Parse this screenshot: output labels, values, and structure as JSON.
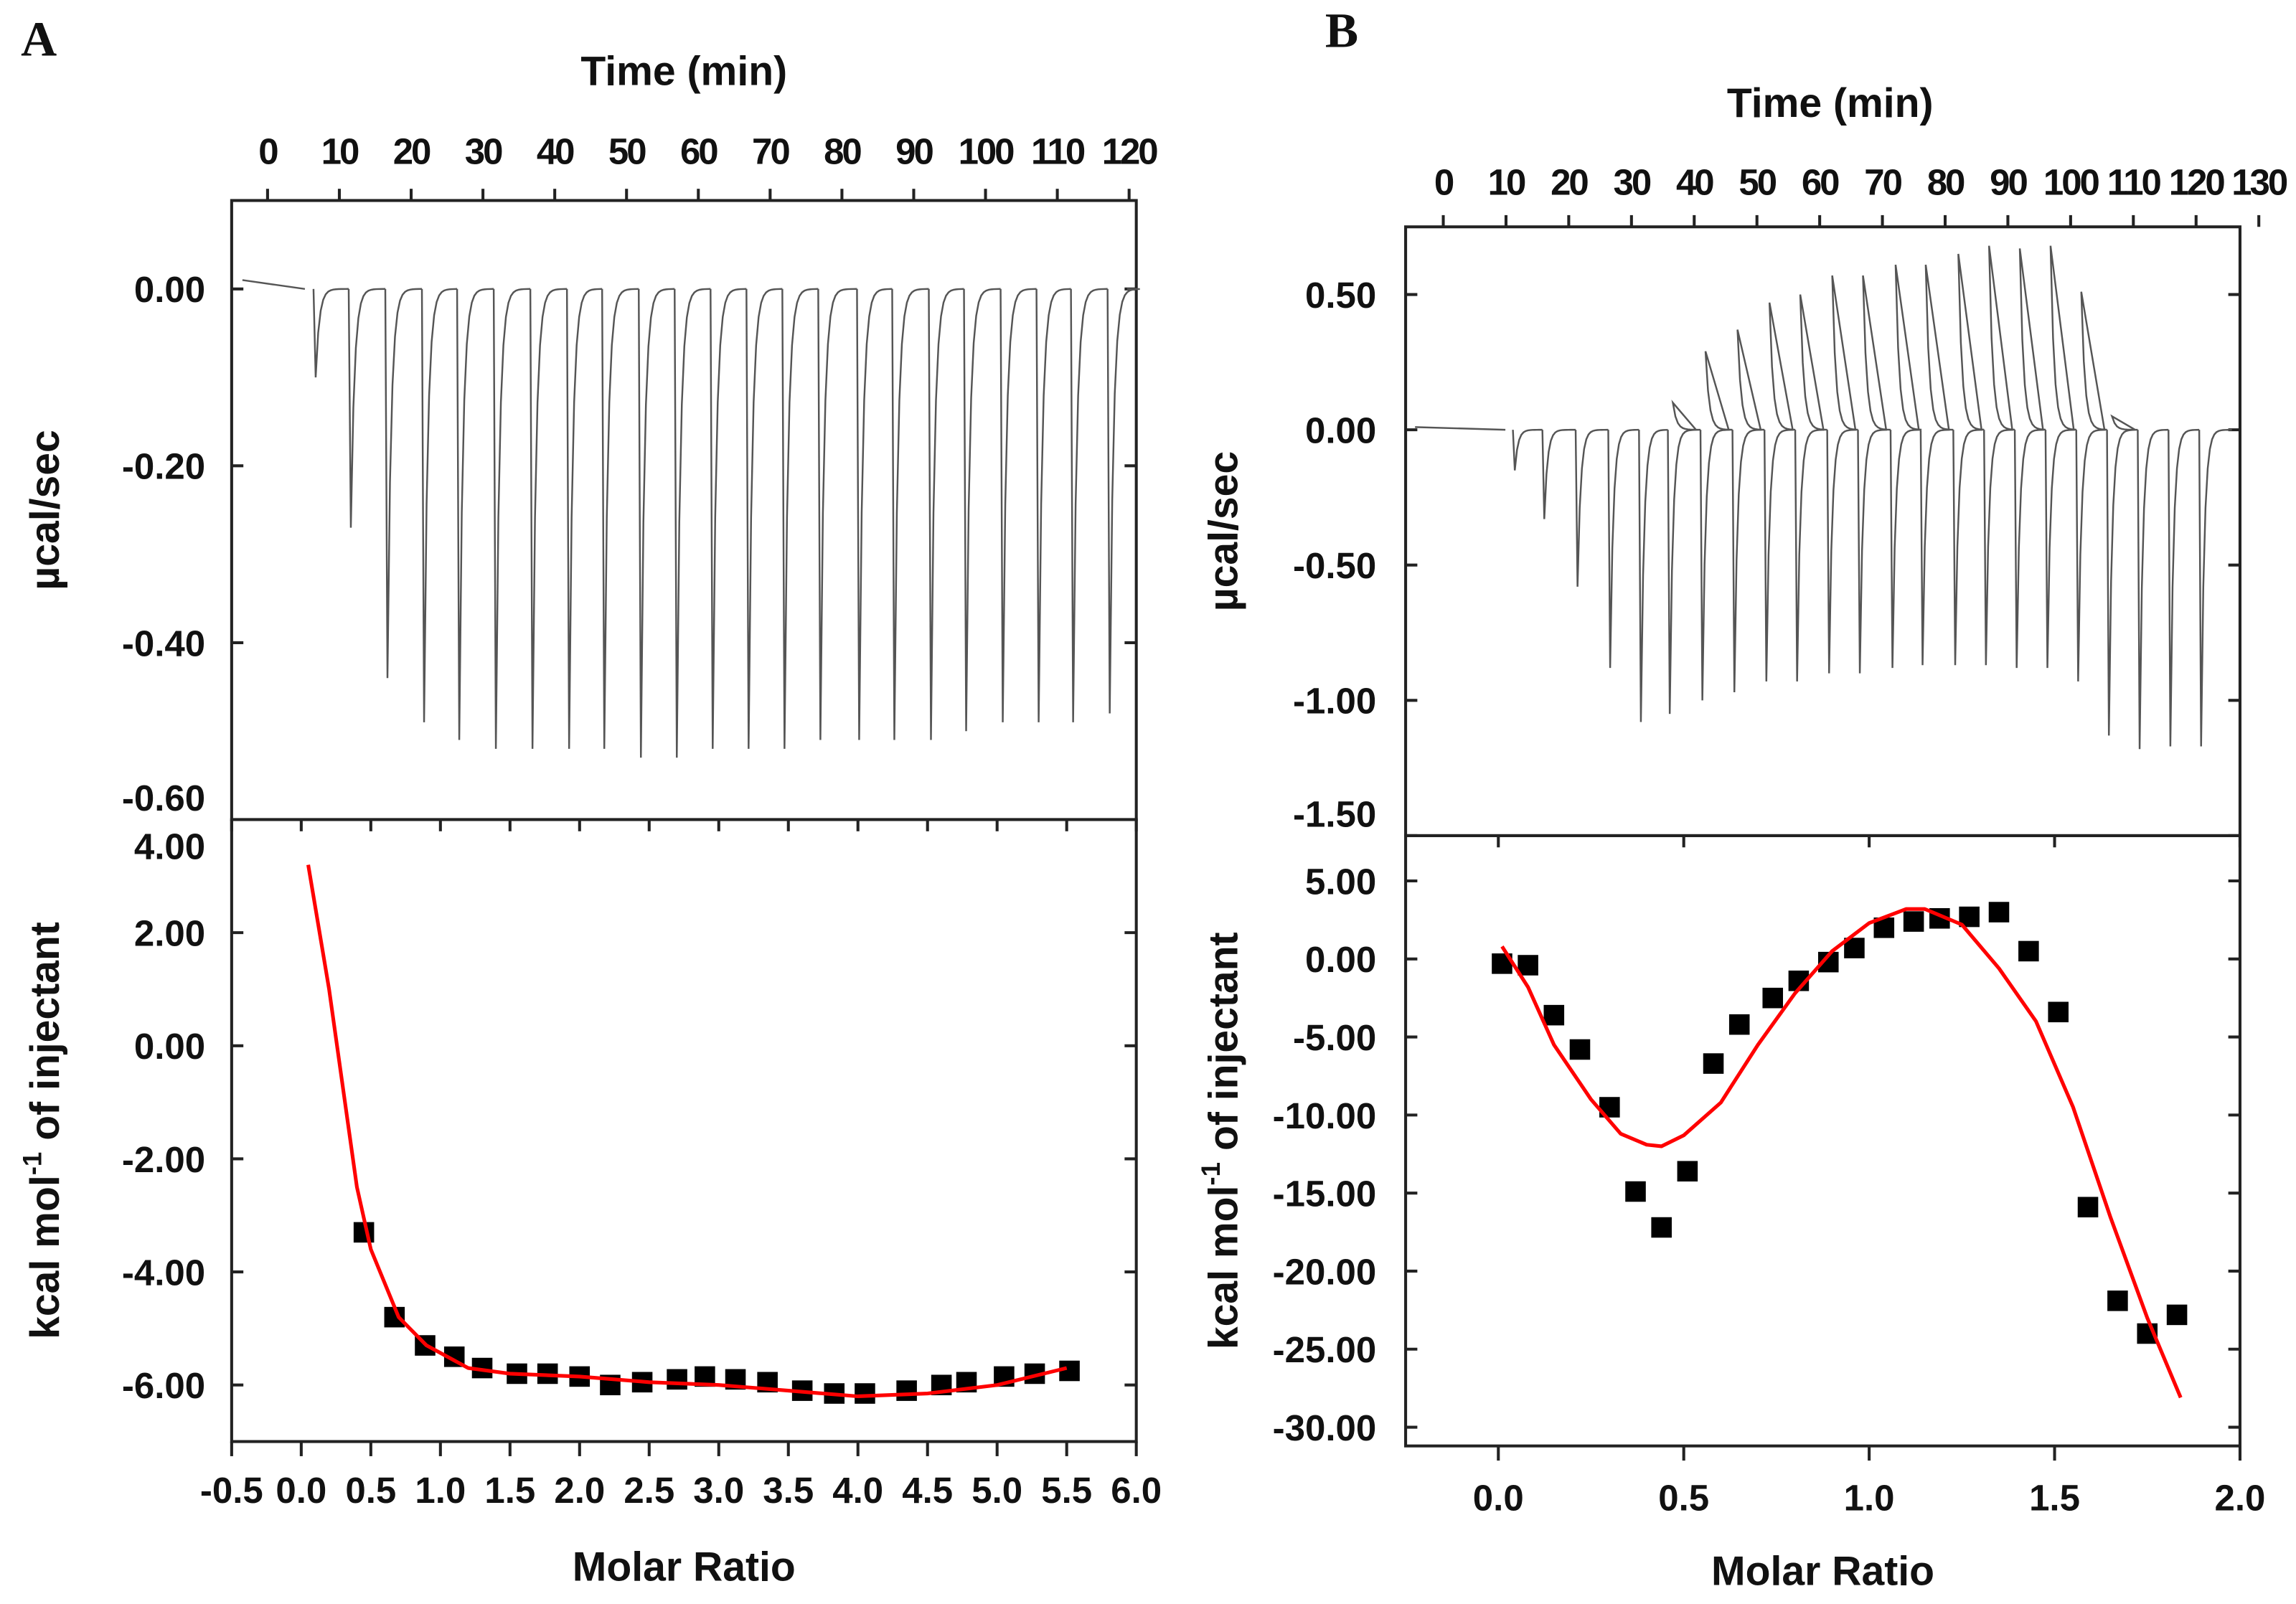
{
  "chart_data": [
    {
      "panel_label": "A",
      "type": "line",
      "thermogram": {
        "title": "Time (min)",
        "ylabel": "µcal/sec",
        "xlim": [
          -5,
          121
        ],
        "ylim": [
          -0.6,
          0.1
        ],
        "xticks": [
          "0",
          "10",
          "20",
          "30",
          "40",
          "50",
          "60",
          "70",
          "80",
          "90",
          "100",
          "110",
          "120"
        ],
        "yticks": [
          "0.00",
          "-0.20",
          "-0.40",
          "-0.60"
        ],
        "injection_times": [
          6.7,
          11.6,
          16.7,
          21.8,
          26.7,
          31.8,
          36.9,
          42,
          46.9,
          52,
          57,
          62,
          67,
          72,
          77,
          82.4,
          87.3,
          92.4,
          97.3,
          102.4,
          107.4,
          112.2,
          117.3
        ],
        "peak_down": [
          -0.1,
          -0.27,
          -0.44,
          -0.49,
          -0.51,
          -0.52,
          -0.52,
          -0.52,
          -0.52,
          -0.53,
          -0.53,
          -0.52,
          -0.52,
          -0.52,
          -0.51,
          -0.51,
          -0.51,
          -0.51,
          -0.5,
          -0.49,
          -0.49,
          -0.49,
          -0.48
        ],
        "peak_up": []
      },
      "binding": {
        "type": "scatter",
        "xlabel": "Molar Ratio",
        "ylabel_parts": [
          "kcal mol",
          "-1",
          " of injectant"
        ],
        "xlim": [
          -0.5,
          6.0
        ],
        "ylim": [
          -7.0,
          4.0
        ],
        "xticks": [
          "-0.5",
          "0.0",
          "0.5",
          "1.0",
          "1.5",
          "2.0",
          "2.5",
          "3.0",
          "3.5",
          "4.0",
          "4.5",
          "5.0",
          "5.5",
          "6.0"
        ],
        "yticks": [
          "4.00",
          "2.00",
          "0.00",
          "-2.00",
          "-4.00",
          "-6.00"
        ],
        "points_x": [
          0.45,
          0.67,
          0.89,
          1.1,
          1.3,
          1.55,
          1.77,
          2.0,
          2.22,
          2.45,
          2.7,
          2.9,
          3.12,
          3.35,
          3.6,
          3.83,
          4.05,
          4.35,
          4.6,
          4.78,
          5.05,
          5.27,
          5.52
        ],
        "points_y": [
          -3.3,
          -4.8,
          -5.3,
          -5.5,
          -5.7,
          -5.8,
          -5.8,
          -5.85,
          -6.0,
          -5.95,
          -5.9,
          -5.85,
          -5.9,
          -5.95,
          -6.1,
          -6.15,
          -6.15,
          -6.1,
          -6.0,
          -5.95,
          -5.85,
          -5.8,
          -5.75
        ],
        "fit_x": [
          0.05,
          0.2,
          0.4,
          0.5,
          0.7,
          0.9,
          1.2,
          1.5,
          2.0,
          2.5,
          3.0,
          3.5,
          4.0,
          4.5,
          5.0,
          5.5
        ],
        "fit_y": [
          3.2,
          1.0,
          -2.5,
          -3.6,
          -4.8,
          -5.3,
          -5.7,
          -5.8,
          -5.85,
          -5.95,
          -6.0,
          -6.1,
          -6.2,
          -6.15,
          -6.0,
          -5.7
        ],
        "fit_color": "#ff0000"
      }
    },
    {
      "panel_label": "B",
      "type": "line",
      "thermogram": {
        "title": "Time (min)",
        "ylabel": "µcal/sec",
        "xlim": [
          -6,
          127
        ],
        "ylim": [
          -1.5,
          0.75
        ],
        "xticks": [
          "0",
          "10",
          "20",
          "30",
          "40",
          "50",
          "60",
          "70",
          "80",
          "90",
          "100",
          "110",
          "120",
          "130"
        ],
        "yticks": [
          "0.50",
          "0.00",
          "-0.50",
          "-1.00",
          "-1.50"
        ],
        "injection_times": [
          11.4,
          16.1,
          21.4,
          26.6,
          31.5,
          36.1,
          41.3,
          46.4,
          51.5,
          56.4,
          61.5,
          66.4,
          71.6,
          76.4,
          81.6,
          86.5,
          91.4,
          96.3,
          101.2,
          106.1,
          111,
          115.9,
          120.8
        ],
        "peak_down": [
          -0.15,
          -0.33,
          -0.58,
          -0.88,
          -1.08,
          -1.05,
          -1.0,
          -0.97,
          -0.93,
          -0.93,
          -0.9,
          -0.9,
          -0.88,
          -0.87,
          -0.87,
          -0.87,
          -0.88,
          -0.88,
          -0.93,
          -1.13,
          -1.18,
          -1.17,
          -1.17
        ],
        "peak_up": [
          0,
          0,
          0,
          0,
          0,
          0.1,
          0.29,
          0.37,
          0.47,
          0.5,
          0.57,
          0.57,
          0.61,
          0.61,
          0.65,
          0.68,
          0.67,
          0.68,
          0.51,
          0.05,
          0,
          0,
          0
        ]
      },
      "binding": {
        "type": "scatter",
        "xlabel": "Molar Ratio",
        "ylabel_parts": [
          "kcal mol",
          "-1",
          " of injectant"
        ],
        "xlim": [
          -0.25,
          2.0
        ],
        "ylim": [
          -31.2,
          7.9
        ],
        "xticks": [
          "0.0",
          "0.5",
          "1.0",
          "1.5",
          "2.0"
        ],
        "yticks": [
          "5.00",
          "0.00",
          "-5.00",
          "-10.00",
          "-15.00",
          "-20.00",
          "-25.00",
          "-30.00"
        ],
        "points_x": [
          0.01,
          0.08,
          0.15,
          0.22,
          0.3,
          0.37,
          0.44,
          0.51,
          0.58,
          0.65,
          0.74,
          0.81,
          0.89,
          0.96,
          1.04,
          1.12,
          1.19,
          1.27,
          1.35,
          1.43,
          1.51,
          1.59,
          1.67,
          1.75,
          1.83
        ],
        "points_y": [
          -0.3,
          -0.4,
          -3.6,
          -5.8,
          -9.5,
          -14.9,
          -17.2,
          -13.6,
          -6.7,
          -4.2,
          -2.5,
          -1.4,
          -0.2,
          0.7,
          2.0,
          2.4,
          2.6,
          2.7,
          3.0,
          0.5,
          -3.4,
          -15.9,
          -21.9,
          -24.0,
          -22.8
        ],
        "fit_x": [
          0.01,
          0.08,
          0.15,
          0.25,
          0.33,
          0.4,
          0.44,
          0.5,
          0.6,
          0.7,
          0.8,
          0.9,
          1.0,
          1.1,
          1.15,
          1.25,
          1.35,
          1.45,
          1.55,
          1.65,
          1.75,
          1.84
        ],
        "fit_y": [
          0.8,
          -1.8,
          -5.5,
          -9,
          -11.2,
          -11.9,
          -12,
          -11.3,
          -9.2,
          -5.5,
          -2.2,
          0.5,
          2.3,
          3.2,
          3.2,
          2.2,
          -0.6,
          -4,
          -9.5,
          -16.5,
          -23,
          -28.1
        ],
        "fit_color": "#ff0000"
      }
    }
  ]
}
